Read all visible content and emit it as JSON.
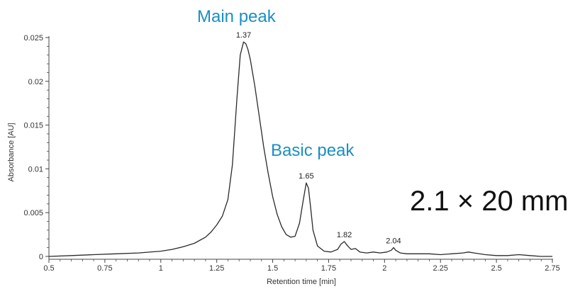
{
  "chart_data": {
    "type": "line",
    "xlabel": "Retention time [min]",
    "ylabel": "Absorbance [AU]",
    "xlim": [
      0.5,
      2.75
    ],
    "ylim": [
      0,
      0.025
    ],
    "x_ticks": [
      "0.5",
      "0.75",
      "1",
      "1.25",
      "1.5",
      "1.75",
      "2",
      "2.25",
      "2.5",
      "2.75"
    ],
    "y_ticks": [
      "0",
      "0.005",
      "0.01",
      "0.015",
      "0.02",
      "0.025"
    ],
    "grid": false,
    "line_color": "#2a2a2a",
    "annotation_color": "#1a8fc4",
    "series": [
      {
        "x": [
          0.5,
          0.6,
          0.7,
          0.8,
          0.9,
          1.0,
          1.05,
          1.1,
          1.15,
          1.2,
          1.225,
          1.25,
          1.275,
          1.3,
          1.32,
          1.34,
          1.355,
          1.37,
          1.38,
          1.39,
          1.4,
          1.42,
          1.44,
          1.46,
          1.48,
          1.5,
          1.52,
          1.54,
          1.56,
          1.58,
          1.6,
          1.62,
          1.635,
          1.65,
          1.66,
          1.67,
          1.68,
          1.7,
          1.73,
          1.76,
          1.79,
          1.805,
          1.82,
          1.835,
          1.85,
          1.87,
          1.89,
          1.92,
          1.95,
          1.98,
          2.01,
          2.03,
          2.04,
          2.05,
          2.07,
          2.1,
          2.15,
          2.2,
          2.25,
          2.3,
          2.35,
          2.375,
          2.4,
          2.45,
          2.5,
          2.55,
          2.6,
          2.65,
          2.7,
          2.75
        ],
        "y": [
          0.0,
          0.0001,
          0.0002,
          0.0003,
          0.0004,
          0.0006,
          0.0008,
          0.0011,
          0.0015,
          0.0022,
          0.0028,
          0.0036,
          0.0046,
          0.0065,
          0.0105,
          0.018,
          0.023,
          0.0245,
          0.0243,
          0.0236,
          0.0225,
          0.0195,
          0.016,
          0.0125,
          0.0095,
          0.0068,
          0.0048,
          0.0034,
          0.0025,
          0.0022,
          0.0023,
          0.0038,
          0.0062,
          0.0084,
          0.0078,
          0.0055,
          0.003,
          0.0012,
          0.0006,
          0.0005,
          0.0008,
          0.0014,
          0.0017,
          0.0012,
          0.0008,
          0.0009,
          0.0005,
          0.0004,
          0.0005,
          0.0004,
          0.0005,
          0.0007,
          0.001,
          0.0007,
          0.0004,
          0.0003,
          0.0003,
          0.0003,
          0.0002,
          0.0003,
          0.0004,
          0.0005,
          0.0004,
          0.0002,
          0.0001,
          0.0001,
          0.0002,
          0.0001,
          0.0,
          0.0
        ]
      }
    ],
    "peak_labels": [
      {
        "x": 1.37,
        "y": 0.0245,
        "text": "1.37"
      },
      {
        "x": 1.65,
        "y": 0.0084,
        "text": "1.65"
      },
      {
        "x": 1.82,
        "y": 0.0017,
        "text": "1.82"
      },
      {
        "x": 2.04,
        "y": 0.001,
        "text": "2.04"
      }
    ],
    "annotations": {
      "main_peak": "Main peak",
      "basic_peak": "Basic peak",
      "column": "2.1 × 20 mm"
    }
  }
}
